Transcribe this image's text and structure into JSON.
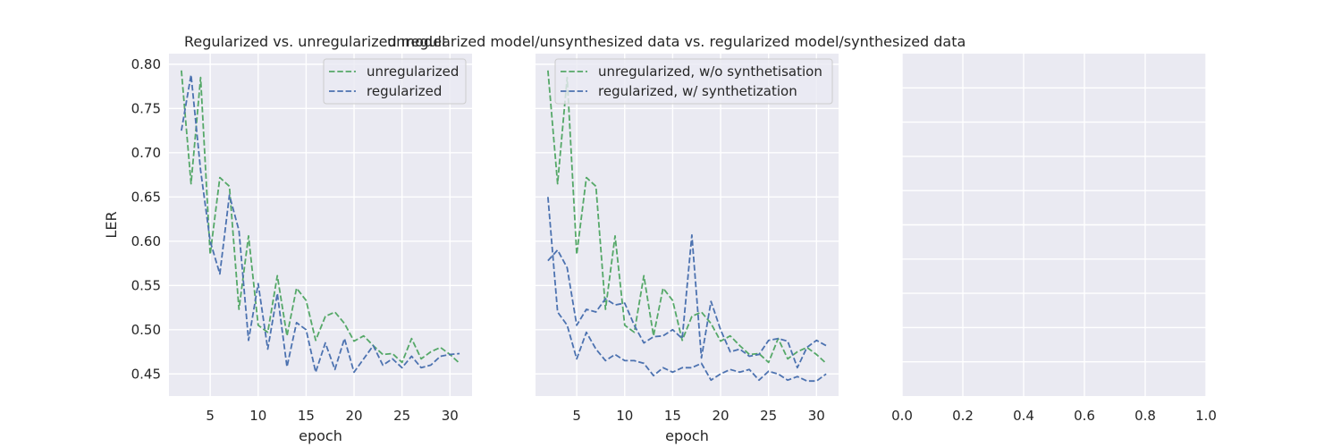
{
  "colors": {
    "panel_bg": "#EAEAF2",
    "grid": "#FFFFFF",
    "green": "#55A868",
    "blue": "#4C72B0",
    "text": "#262626"
  },
  "chart_data": [
    {
      "type": "line",
      "title": "Regularized vs. unregularized model",
      "xlabel": "epoch",
      "ylabel": "LER",
      "xlim": [
        0.7,
        32.3
      ],
      "ylim": [
        0.425,
        0.812
      ],
      "xticks": [
        5,
        10,
        15,
        20,
        25,
        30
      ],
      "yticks": [
        0.45,
        0.5,
        0.55,
        0.6,
        0.65,
        0.7,
        0.75,
        0.8
      ],
      "legend_position": "top-right",
      "grid": true,
      "x": [
        2,
        3,
        4,
        5,
        6,
        7,
        8,
        9,
        10,
        11,
        12,
        13,
        14,
        15,
        16,
        17,
        18,
        19,
        20,
        21,
        22,
        23,
        24,
        25,
        26,
        27,
        28,
        29,
        30,
        31
      ],
      "series": [
        {
          "name": "unregularized",
          "color": "#55A868",
          "dash": "dashed",
          "values": [
            0.793,
            0.665,
            0.785,
            0.585,
            0.672,
            0.662,
            0.523,
            0.606,
            0.505,
            0.497,
            0.561,
            0.493,
            0.547,
            0.533,
            0.488,
            0.515,
            0.52,
            0.507,
            0.487,
            0.493,
            0.482,
            0.472,
            0.473,
            0.463,
            0.49,
            0.467,
            0.475,
            0.48,
            0.472,
            0.462
          ]
        },
        {
          "name": "regularized",
          "color": "#4C72B0",
          "dash": "dashed",
          "values": [
            0.725,
            0.788,
            0.68,
            0.6,
            0.563,
            0.652,
            0.612,
            0.488,
            0.552,
            0.478,
            0.541,
            0.458,
            0.508,
            0.5,
            0.452,
            0.485,
            0.455,
            0.49,
            0.452,
            0.467,
            0.482,
            0.46,
            0.467,
            0.457,
            0.47,
            0.457,
            0.46,
            0.47,
            0.472,
            0.473
          ]
        }
      ]
    },
    {
      "type": "line",
      "title": "unregularized model/unsynthesized data vs. regularized model/synthesized data",
      "xlabel": "epoch",
      "ylabel": "",
      "xlim": [
        0.7,
        32.3
      ],
      "ylim": [
        0.425,
        0.812
      ],
      "xticks": [
        5,
        10,
        15,
        20,
        25,
        30
      ],
      "yticks": [
        0.45,
        0.5,
        0.55,
        0.6,
        0.65,
        0.7,
        0.75,
        0.8
      ],
      "legend_position": "top-right",
      "grid": true,
      "x": [
        2,
        3,
        4,
        5,
        6,
        7,
        8,
        9,
        10,
        11,
        12,
        13,
        14,
        15,
        16,
        17,
        18,
        19,
        20,
        21,
        22,
        23,
        24,
        25,
        26,
        27,
        28,
        29,
        30,
        31
      ],
      "series": [
        {
          "name": "unregularized, w/o synthetisation",
          "color": "#55A868",
          "dash": "dashed",
          "values": [
            0.793,
            0.665,
            0.785,
            0.585,
            0.672,
            0.662,
            0.523,
            0.606,
            0.505,
            0.497,
            0.561,
            0.493,
            0.547,
            0.533,
            0.488,
            0.515,
            0.52,
            0.507,
            0.487,
            0.493,
            0.482,
            0.472,
            0.473,
            0.463,
            0.49,
            0.467,
            0.475,
            0.48,
            0.472,
            0.462
          ]
        },
        {
          "name": "regularized, w/ synthetization",
          "color": "#4C72B0",
          "dash": "dashed",
          "values": [
            0.578,
            0.59,
            0.57,
            0.505,
            0.523,
            0.52,
            0.535,
            0.528,
            0.53,
            0.505,
            0.485,
            0.492,
            0.493,
            0.5,
            0.49,
            0.607,
            0.468,
            0.532,
            0.5,
            0.475,
            0.478,
            0.47,
            0.472,
            0.488,
            0.49,
            0.487,
            0.457,
            0.48,
            0.488,
            0.482
          ]
        },
        {
          "name": "",
          "color": "#4C72B0",
          "dash": "dashed",
          "values": [
            0.65,
            0.52,
            0.505,
            0.467,
            0.497,
            0.478,
            0.465,
            0.472,
            0.465,
            0.465,
            0.462,
            0.448,
            0.457,
            0.452,
            0.457,
            0.457,
            0.462,
            0.443,
            0.45,
            0.455,
            0.452,
            0.455,
            0.443,
            0.453,
            0.45,
            0.443,
            0.447,
            0.442,
            0.442,
            0.45
          ]
        }
      ]
    },
    {
      "type": "line",
      "title": "",
      "xlabel": "",
      "ylabel": "",
      "xlim": [
        0.0,
        1.0
      ],
      "ylim": [
        0.0,
        1.0
      ],
      "xticks": [
        0.0,
        0.2,
        0.4,
        0.6,
        0.8,
        1.0
      ],
      "xtick_labels": [
        "0.0",
        "0.2",
        "0.4",
        "0.6",
        "0.8",
        "1.0"
      ],
      "yticks": [
        0.1,
        0.2,
        0.3,
        0.4,
        0.5,
        0.6,
        0.7,
        0.8,
        0.9
      ],
      "show_ytick_labels": false,
      "grid": true,
      "series": []
    }
  ]
}
